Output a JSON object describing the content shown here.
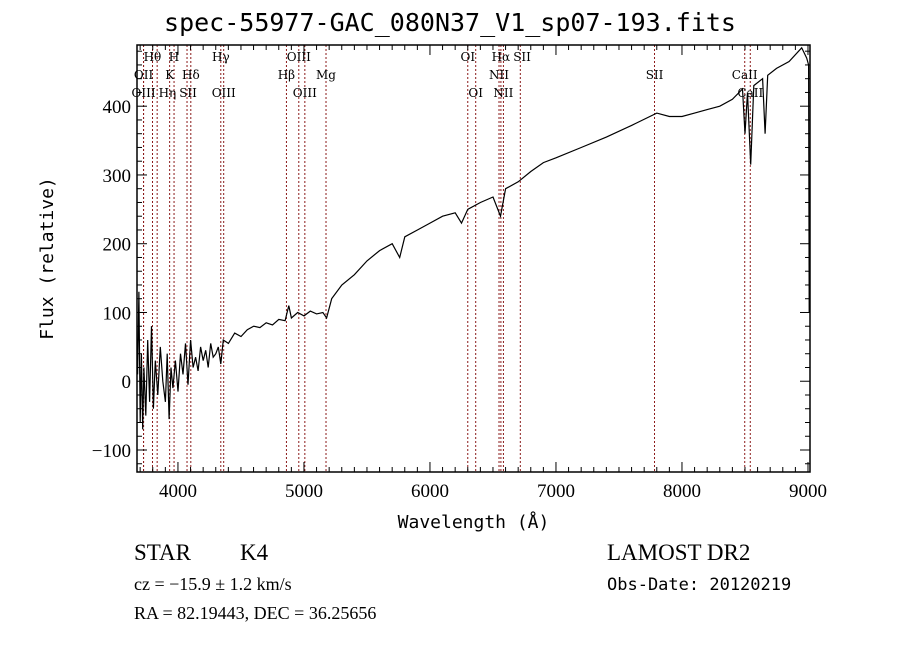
{
  "chart_data": {
    "type": "line",
    "title": "spec-55977-GAC_080N37_V1_sp07-193.fits",
    "xlabel": "Wavelength (Å)",
    "ylabel": "Flux (relative)",
    "xlim": [
      3675,
      9016
    ],
    "ylim": [
      -132,
      489
    ],
    "xticks": [
      4000,
      5000,
      6000,
      7000,
      8000,
      9000
    ],
    "yticks": [
      -100,
      0,
      100,
      200,
      300,
      400
    ],
    "grid": false,
    "lines": [
      {
        "label": "Hθ",
        "w": 3798,
        "row": 0
      },
      {
        "label": "H",
        "w": 3969,
        "row": 0
      },
      {
        "label": "Hγ",
        "w": 4340,
        "row": 0
      },
      {
        "label": "OIII",
        "w": 4959,
        "row": 0
      },
      {
        "label": "OI",
        "w": 6300,
        "row": 0
      },
      {
        "label": "Hα",
        "w": 6563,
        "row": 0
      },
      {
        "label": "SII",
        "w": 6717,
        "row": 0
      },
      {
        "label": "OII",
        "w": 3727,
        "row": 1
      },
      {
        "label": "K",
        "w": 3934,
        "row": 1
      },
      {
        "label": "Hδ",
        "w": 4102,
        "row": 1
      },
      {
        "label": "Hβ",
        "w": 4861,
        "row": 1
      },
      {
        "label": "Mg",
        "w": 5175,
        "row": 1
      },
      {
        "label": "NII",
        "w": 6548,
        "row": 1
      },
      {
        "label": "SII",
        "w": 7782,
        "row": 1
      },
      {
        "label": "CaII",
        "w": 8498,
        "row": 1
      },
      {
        "label": "OIII",
        "w": 3727,
        "row": 2
      },
      {
        "label": "Hη",
        "w": 3835,
        "row": 2
      },
      {
        "label": "SII",
        "w": 4072,
        "row": 2
      },
      {
        "label": "OIII",
        "w": 4363,
        "row": 2
      },
      {
        "label": "OIII",
        "w": 5007,
        "row": 2
      },
      {
        "label": "OI",
        "w": 6363,
        "row": 2
      },
      {
        "label": "NII",
        "w": 6583,
        "row": 2
      },
      {
        "label": "CaII",
        "w": 8542,
        "row": 2
      }
    ],
    "spectrum": [
      [
        3680,
        10
      ],
      [
        3690,
        130
      ],
      [
        3700,
        -60
      ],
      [
        3710,
        40
      ],
      [
        3720,
        -70
      ],
      [
        3730,
        20
      ],
      [
        3745,
        -50
      ],
      [
        3760,
        60
      ],
      [
        3775,
        -30
      ],
      [
        3790,
        80
      ],
      [
        3805,
        -40
      ],
      [
        3820,
        30
      ],
      [
        3840,
        -20
      ],
      [
        3860,
        50
      ],
      [
        3880,
        0
      ],
      [
        3900,
        -30
      ],
      [
        3915,
        40
      ],
      [
        3930,
        -55
      ],
      [
        3945,
        20
      ],
      [
        3960,
        -10
      ],
      [
        3980,
        30
      ],
      [
        4000,
        -15
      ],
      [
        4020,
        40
      ],
      [
        4040,
        10
      ],
      [
        4060,
        55
      ],
      [
        4080,
        -5
      ],
      [
        4100,
        60
      ],
      [
        4120,
        20
      ],
      [
        4140,
        35
      ],
      [
        4160,
        15
      ],
      [
        4180,
        50
      ],
      [
        4200,
        30
      ],
      [
        4220,
        45
      ],
      [
        4240,
        20
      ],
      [
        4260,
        55
      ],
      [
        4280,
        35
      ],
      [
        4300,
        40
      ],
      [
        4320,
        50
      ],
      [
        4340,
        25
      ],
      [
        4360,
        60
      ],
      [
        4400,
        55
      ],
      [
        4450,
        70
      ],
      [
        4500,
        65
      ],
      [
        4550,
        75
      ],
      [
        4600,
        80
      ],
      [
        4650,
        78
      ],
      [
        4700,
        85
      ],
      [
        4750,
        82
      ],
      [
        4800,
        90
      ],
      [
        4850,
        88
      ],
      [
        4880,
        110
      ],
      [
        4900,
        92
      ],
      [
        4950,
        100
      ],
      [
        5000,
        95
      ],
      [
        5050,
        102
      ],
      [
        5100,
        98
      ],
      [
        5150,
        100
      ],
      [
        5180,
        92
      ],
      [
        5220,
        120
      ],
      [
        5300,
        140
      ],
      [
        5400,
        155
      ],
      [
        5500,
        175
      ],
      [
        5600,
        190
      ],
      [
        5700,
        200
      ],
      [
        5760,
        180
      ],
      [
        5800,
        210
      ],
      [
        5900,
        220
      ],
      [
        6000,
        230
      ],
      [
        6100,
        240
      ],
      [
        6200,
        245
      ],
      [
        6250,
        230
      ],
      [
        6300,
        250
      ],
      [
        6400,
        260
      ],
      [
        6500,
        268
      ],
      [
        6560,
        240
      ],
      [
        6600,
        280
      ],
      [
        6700,
        290
      ],
      [
        6800,
        305
      ],
      [
        6900,
        318
      ],
      [
        7000,
        325
      ],
      [
        7200,
        340
      ],
      [
        7400,
        355
      ],
      [
        7600,
        372
      ],
      [
        7800,
        390
      ],
      [
        7900,
        385
      ],
      [
        8000,
        385
      ],
      [
        8100,
        390
      ],
      [
        8200,
        395
      ],
      [
        8300,
        400
      ],
      [
        8400,
        410
      ],
      [
        8480,
        425
      ],
      [
        8500,
        360
      ],
      [
        8520,
        420
      ],
      [
        8545,
        315
      ],
      [
        8570,
        430
      ],
      [
        8640,
        440
      ],
      [
        8660,
        360
      ],
      [
        8680,
        445
      ],
      [
        8750,
        455
      ],
      [
        8850,
        465
      ],
      [
        8950,
        485
      ],
      [
        8990,
        470
      ],
      [
        9005,
        460
      ],
      [
        9010,
        100
      ]
    ]
  },
  "footer": {
    "object_class": "STAR",
    "subclass": "K4",
    "survey": "LAMOST DR2",
    "redshift": "cz = −15.9 ± 1.2 km/s",
    "obs_date": "Obs-Date: 20120219",
    "coords": "RA =  82.19443, DEC =  36.25656"
  },
  "colors": {
    "line_marker": "#8b1a1a",
    "spectrum": "#000000"
  }
}
